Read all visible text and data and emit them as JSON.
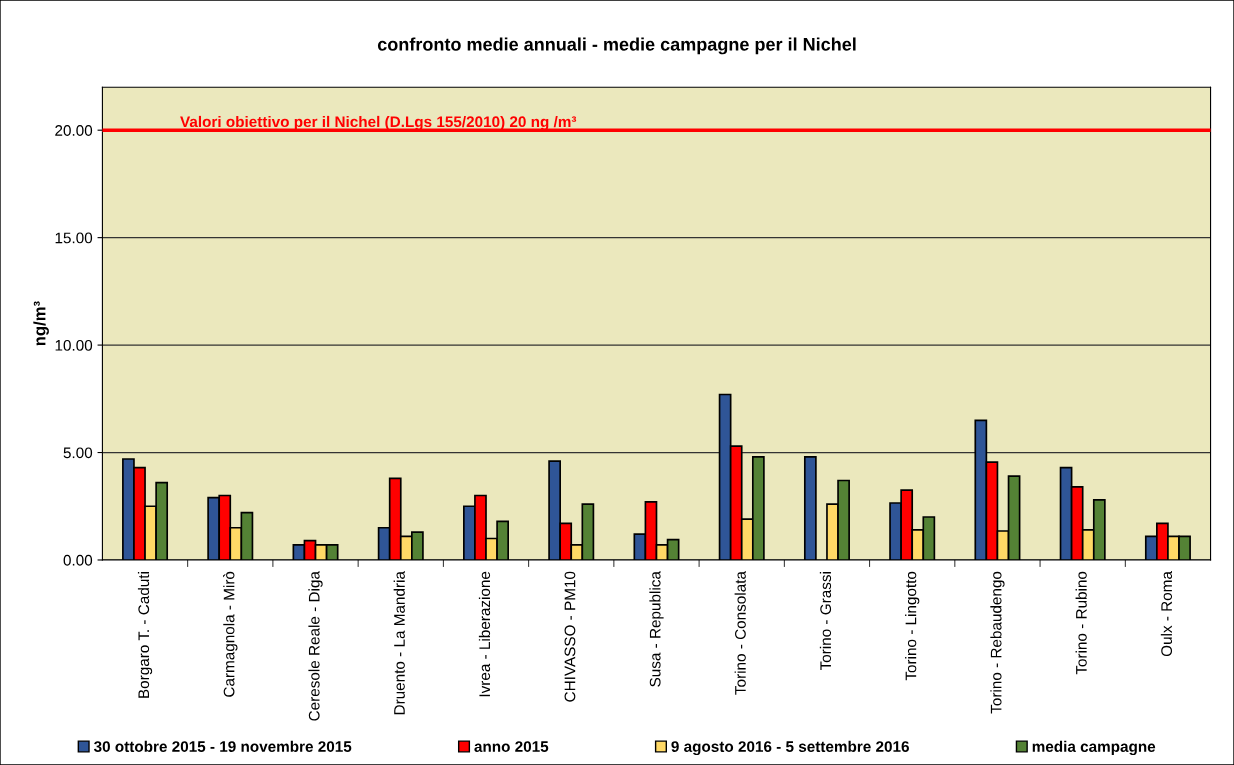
{
  "chart_data": {
    "type": "bar",
    "title": "confronto medie annuali - medie campagne per il Nichel",
    "ylabel": "ng/m³",
    "categories": [
      "Borgaro T. - Caduti",
      "Carmagnola - Mirò",
      "Ceresole Reale - Diga",
      "Druento - La Mandria",
      "Ivrea - Liberazione",
      "CHIVASSO - PM10",
      "Susa - Republica",
      "Torino - Consolata",
      "Torino - Grassi",
      "Torino - Lingotto",
      "Torino - Rebaudengo",
      "Torino - Rubino",
      "Oulx - Roma"
    ],
    "series": [
      {
        "name": "30 ottobre 2015 - 19 novembre 2015",
        "color": "#2f5597",
        "values": [
          4.7,
          2.9,
          0.7,
          1.5,
          2.5,
          4.6,
          1.2,
          7.7,
          4.8,
          2.65,
          6.5,
          4.3,
          1.1
        ]
      },
      {
        "name": "anno 2015",
        "color": "#ff0000",
        "values": [
          4.3,
          3.0,
          0.9,
          3.8,
          3.0,
          1.7,
          2.7,
          5.3,
          null,
          3.25,
          4.55,
          3.4,
          1.7
        ]
      },
      {
        "name": "9 agosto 2016 - 5 settembre 2016",
        "color": "#ffd966",
        "values": [
          2.5,
          1.5,
          0.7,
          1.1,
          1.0,
          0.7,
          0.7,
          1.9,
          2.6,
          1.4,
          1.35,
          1.4,
          1.1
        ]
      },
      {
        "name": "media campagne",
        "color": "#548235",
        "values": [
          3.6,
          2.2,
          0.7,
          1.3,
          1.8,
          2.6,
          0.95,
          4.8,
          3.7,
          2.0,
          3.9,
          2.8,
          1.1
        ]
      }
    ],
    "ylim": [
      0,
      22
    ],
    "yticks": [
      {
        "value": 0,
        "label": "0.00"
      },
      {
        "value": 5,
        "label": "5.00"
      },
      {
        "value": 10,
        "label": "10.00"
      },
      {
        "value": 15,
        "label": "15.00"
      },
      {
        "value": 20,
        "label": "20.00"
      }
    ],
    "grid": "y",
    "legend": "bottom",
    "ref_lines": [
      {
        "axis": "y",
        "value": 20,
        "label": "Valori obiettivo per il Nichel (D.Lgs 155/2010) 20 ng /m³",
        "color": "#ff0000",
        "line_style": "solid"
      }
    ]
  }
}
